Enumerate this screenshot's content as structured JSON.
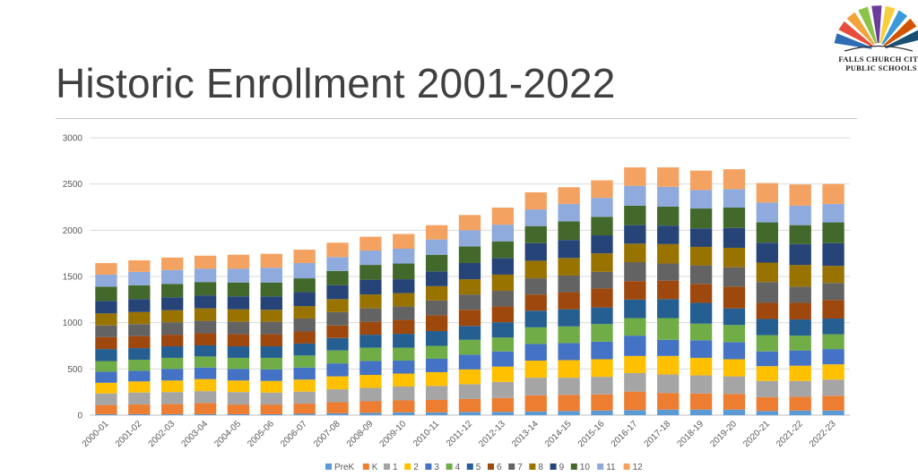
{
  "slide": {
    "title": "Historic Enrollment 2001-2022"
  },
  "logo": {
    "line1": "Falls Church City",
    "line2": "Public Schools",
    "colors": [
      "#2e6db4",
      "#e84c3d",
      "#f2a33a",
      "#8bc34a",
      "#6a3d9a",
      "#f4d03f",
      "#3a9ad9",
      "#d35400",
      "#1b4f72"
    ]
  },
  "chart_data": {
    "type": "bar",
    "stacked": true,
    "ylim": [
      0,
      3000
    ],
    "yticks": [
      0,
      500,
      1000,
      1500,
      2000,
      2500,
      3000
    ],
    "grid": true,
    "legend_position": "bottom",
    "categories": [
      "2000-01",
      "2001-02",
      "2002-03",
      "2003-04",
      "2004-05",
      "2005-06",
      "2006-07",
      "2007-08",
      "2008-09",
      "2009-10",
      "2010-11",
      "2011-12",
      "2012-13",
      "2013-14",
      "2014-15",
      "2015-16",
      "2016-17",
      "2017-18",
      "2018-19",
      "2019-20",
      "2020-21",
      "2021-22",
      "2022-23"
    ],
    "series": [
      {
        "name": "PreK",
        "color": "#5b9bd5",
        "values": [
          10,
          10,
          10,
          10,
          10,
          10,
          15,
          20,
          25,
          30,
          30,
          35,
          35,
          40,
          45,
          50,
          55,
          60,
          60,
          60,
          45,
          50,
          50
        ]
      },
      {
        "name": "K",
        "color": "#ed7d31",
        "values": [
          100,
          105,
          110,
          120,
          105,
          105,
          110,
          120,
          125,
          130,
          135,
          140,
          150,
          175,
          175,
          175,
          200,
          180,
          175,
          170,
          150,
          150,
          160
        ]
      },
      {
        "name": "1",
        "color": "#a5a5a5",
        "values": [
          125,
          130,
          130,
          130,
          135,
          130,
          130,
          140,
          145,
          150,
          150,
          160,
          175,
          190,
          185,
          190,
          200,
          200,
          195,
          190,
          175,
          170,
          175
        ]
      },
      {
        "name": "2",
        "color": "#ffc000",
        "values": [
          115,
          120,
          125,
          130,
          125,
          125,
          130,
          140,
          140,
          140,
          150,
          160,
          165,
          185,
          190,
          190,
          185,
          200,
          190,
          185,
          160,
          165,
          165
        ]
      },
      {
        "name": "3",
        "color": "#4472c4",
        "values": [
          120,
          115,
          125,
          125,
          125,
          125,
          130,
          140,
          150,
          140,
          145,
          160,
          165,
          180,
          185,
          190,
          220,
          175,
          190,
          185,
          160,
          165,
          165
        ]
      },
      {
        "name": "4",
        "color": "#70ad47",
        "values": [
          115,
          120,
          120,
          120,
          120,
          125,
          130,
          140,
          145,
          140,
          140,
          160,
          150,
          180,
          180,
          190,
          190,
          235,
          180,
          185,
          175,
          160,
          160
        ]
      },
      {
        "name": "5",
        "color": "#255e91",
        "values": [
          130,
          125,
          125,
          120,
          125,
          125,
          130,
          135,
          140,
          150,
          160,
          150,
          165,
          180,
          185,
          180,
          200,
          205,
          225,
          180,
          175,
          175,
          170
        ]
      },
      {
        "name": "6",
        "color": "#9e480e",
        "values": [
          130,
          130,
          125,
          130,
          130,
          130,
          130,
          135,
          140,
          150,
          170,
          175,
          170,
          175,
          185,
          205,
          200,
          200,
          205,
          235,
          175,
          180,
          200
        ]
      },
      {
        "name": "7",
        "color": "#636363",
        "values": [
          125,
          130,
          135,
          135,
          135,
          135,
          140,
          145,
          145,
          145,
          160,
          165,
          170,
          175,
          180,
          180,
          205,
          185,
          200,
          210,
          225,
          175,
          185
        ]
      },
      {
        "name": "8",
        "color": "#997300",
        "values": [
          130,
          130,
          130,
          135,
          135,
          130,
          135,
          140,
          150,
          145,
          155,
          165,
          175,
          190,
          190,
          200,
          200,
          210,
          200,
          210,
          210,
          235,
          185
        ]
      },
      {
        "name": "9",
        "color": "#264478",
        "values": [
          135,
          140,
          140,
          140,
          140,
          145,
          150,
          150,
          160,
          150,
          160,
          175,
          180,
          190,
          195,
          195,
          200,
          200,
          200,
          215,
          215,
          225,
          245
        ]
      },
      {
        "name": "10",
        "color": "#43682b",
        "values": [
          155,
          150,
          145,
          145,
          150,
          150,
          150,
          155,
          160,
          170,
          180,
          180,
          180,
          185,
          200,
          200,
          210,
          205,
          215,
          220,
          220,
          205,
          225
        ]
      },
      {
        "name": "11",
        "color": "#8faadc",
        "values": [
          130,
          145,
          150,
          145,
          150,
          160,
          165,
          150,
          155,
          160,
          165,
          175,
          180,
          180,
          190,
          205,
          215,
          215,
          200,
          200,
          215,
          210,
          200
        ]
      },
      {
        "name": "12",
        "color": "#f4a261",
        "values": [
          125,
          125,
          135,
          140,
          150,
          150,
          145,
          155,
          150,
          160,
          155,
          165,
          185,
          185,
          180,
          190,
          200,
          210,
          210,
          215,
          210,
          230,
          215
        ]
      }
    ]
  }
}
